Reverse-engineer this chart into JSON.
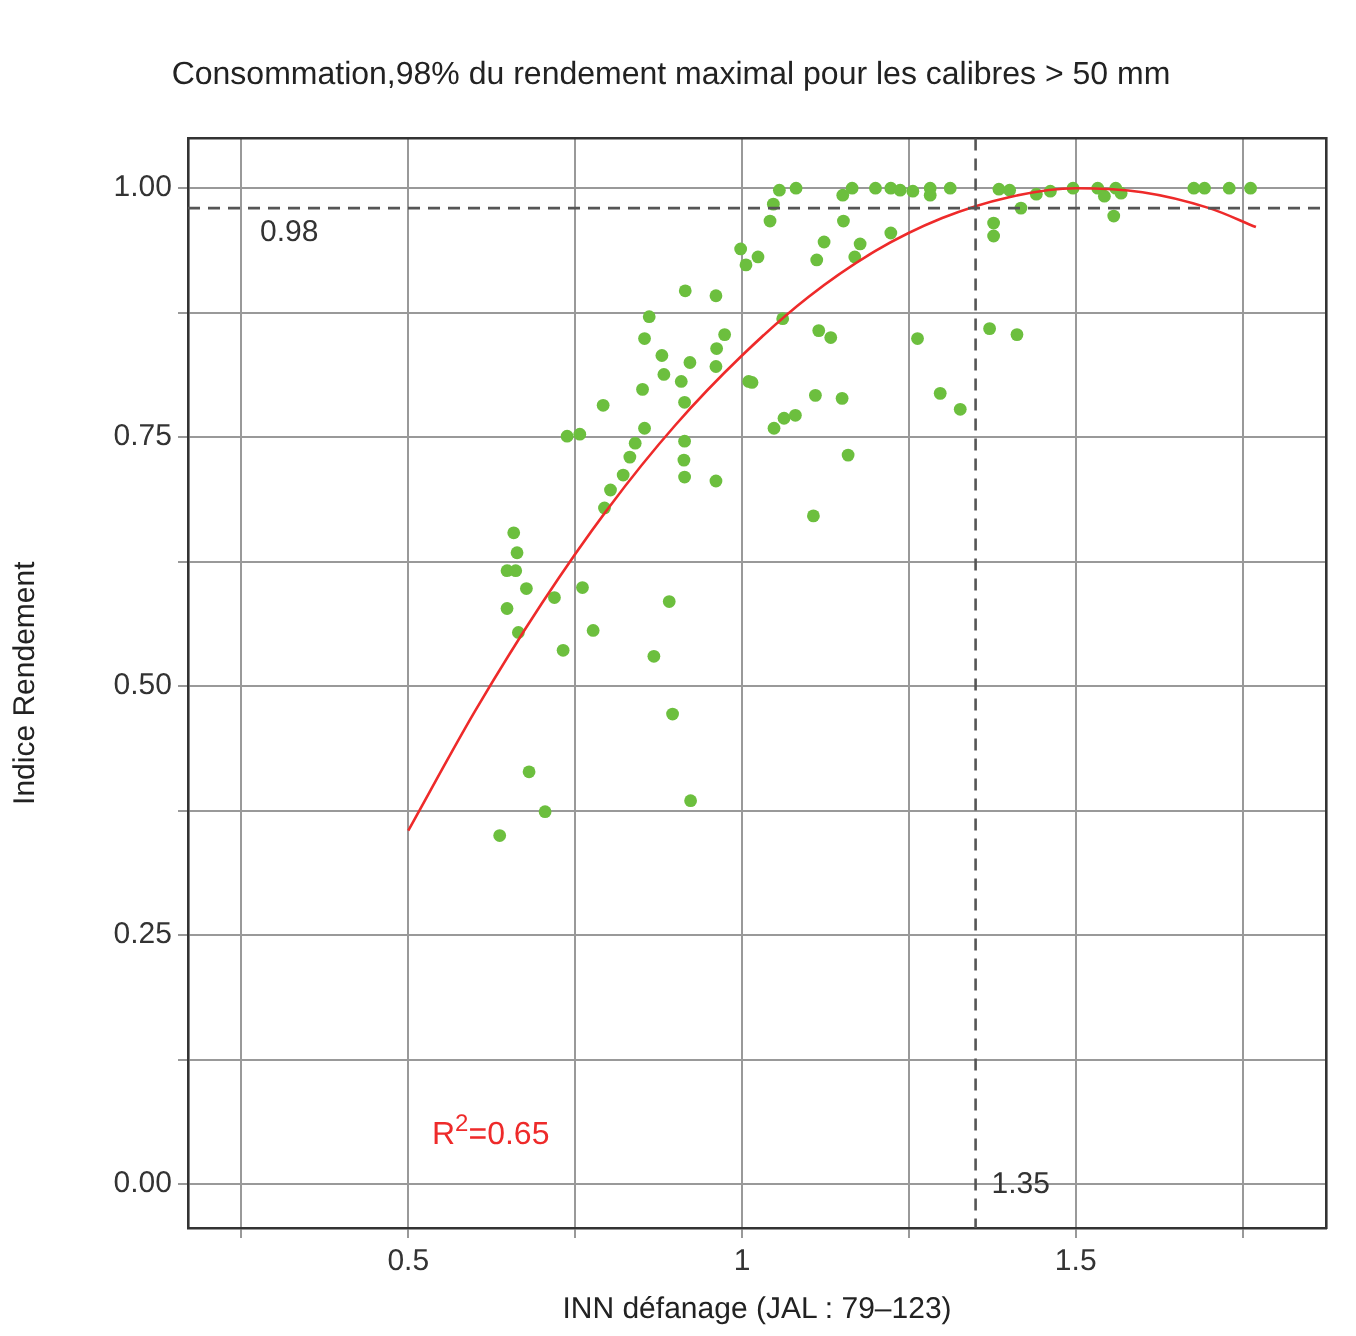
{
  "chart_data": {
    "type": "scatter",
    "title": "Consommation,98% du rendement maximal pour les calibres > 50 mm",
    "xlabel": "INN défanage (JAL : 79–123)",
    "ylabel": "Indice Rendement",
    "xlim": [
      0.17,
      1.875
    ],
    "ylim": [
      -0.044,
      1.05
    ],
    "xticks": [
      {
        "value": 0.25,
        "label": null
      },
      0.5,
      {
        "value": 0.75,
        "label": null
      },
      1,
      {
        "value": 1.25,
        "label": null
      },
      1.5,
      {
        "value": 1.75,
        "label": null
      }
    ],
    "yticks": [
      {
        "value": 0,
        "label": "0.00"
      },
      {
        "value": 0.125,
        "label": null
      },
      0.25,
      {
        "value": 0.375,
        "label": null
      },
      {
        "value": 0.5,
        "label": "0.50"
      },
      {
        "value": 0.625,
        "label": null
      },
      0.75,
      {
        "value": 0.875,
        "label": null
      },
      {
        "value": 1,
        "label": "1.00"
      }
    ],
    "grid": true,
    "legend": false,
    "marker": "circle",
    "series": [
      {
        "color": "#6cbf3e",
        "x": [
          0.998,
          1.024,
          0.915,
          0.961,
          0.861,
          0.854,
          0.974,
          0.962,
          0.88,
          0.922,
          0.961,
          0.883,
          1.01,
          0.909,
          0.851,
          0.914,
          0.792,
          0.854,
          0.738,
          0.757,
          0.84,
          0.914,
          0.832,
          0.913,
          0.822,
          0.914,
          0.961,
          0.803,
          0.794,
          0.658,
          0.663,
          0.648,
          0.661,
          0.677,
          0.761,
          0.648,
          0.719,
          0.891,
          0.777,
          0.665,
          0.732,
          0.868,
          0.896,
          0.681,
          0.705,
          0.637,
          0.923,
          1.006,
          1.056,
          1.081,
          1.151,
          1.165,
          1.2,
          1.223,
          1.237,
          1.256,
          1.282,
          1.282,
          1.312,
          1.385,
          1.401,
          1.441,
          1.462,
          1.496,
          1.533,
          1.543,
          1.56,
          1.568,
          1.557,
          1.677,
          1.693,
          1.73,
          1.762,
          1.047,
          1.042,
          1.152,
          1.223,
          1.418,
          1.377,
          1.377,
          1.123,
          1.112,
          1.177,
          1.169,
          1.061,
          1.115,
          1.133,
          1.263,
          1.371,
          1.412,
          1.015,
          1.11,
          1.15,
          1.297,
          1.327,
          1.048,
          1.063,
          1.08,
          1.159,
          1.107
        ],
        "values": [
          0.939,
          0.931,
          0.897,
          0.892,
          0.871,
          0.849,
          0.853,
          0.839,
          0.832,
          0.825,
          0.821,
          0.813,
          0.806,
          0.806,
          0.798,
          0.785,
          0.782,
          0.759,
          0.751,
          0.753,
          0.744,
          0.746,
          0.73,
          0.727,
          0.712,
          0.71,
          0.706,
          0.697,
          0.679,
          0.654,
          0.634,
          0.616,
          0.616,
          0.598,
          0.599,
          0.578,
          0.589,
          0.585,
          0.556,
          0.554,
          0.536,
          0.53,
          0.472,
          0.414,
          0.374,
          0.35,
          0.385,
          0.923,
          0.998,
          1.0,
          0.993,
          1.0,
          1.0,
          1.0,
          0.998,
          0.997,
          1.0,
          0.993,
          1.0,
          0.999,
          0.998,
          0.994,
          0.997,
          1.0,
          1.0,
          0.992,
          1.0,
          0.995,
          0.972,
          1.0,
          1.0,
          1.0,
          1.0,
          0.984,
          0.967,
          0.967,
          0.955,
          0.98,
          0.965,
          0.952,
          0.946,
          0.928,
          0.944,
          0.931,
          0.869,
          0.857,
          0.85,
          0.849,
          0.859,
          0.853,
          0.805,
          0.792,
          0.789,
          0.794,
          0.778,
          0.759,
          0.769,
          0.772,
          0.732,
          0.671
        ]
      },
      {
        "type": "line",
        "color": "#ee2a2a",
        "marker": "none",
        "line_style": "solid",
        "x": [
          0.5,
          0.6,
          0.7,
          0.8,
          0.9,
          1.0,
          1.1,
          1.2,
          1.3,
          1.4,
          1.5,
          1.6,
          1.7,
          1.77
        ],
        "values": [
          0.355,
          0.475,
          0.583,
          0.679,
          0.762,
          0.832,
          0.891,
          0.937,
          0.97,
          0.991,
          1.0,
          0.996,
          0.98,
          0.961
        ]
      }
    ],
    "ref_lines": [
      {
        "axis": "y",
        "value": 0.98,
        "label": "0.98",
        "color": "#555555",
        "line_style": "dashed"
      },
      {
        "axis": "x",
        "value": 1.35,
        "label": "1.35",
        "color": "#555555",
        "line_style": "dashed"
      }
    ],
    "annotations": [
      "R$^{2}$=0.65"
    ]
  }
}
